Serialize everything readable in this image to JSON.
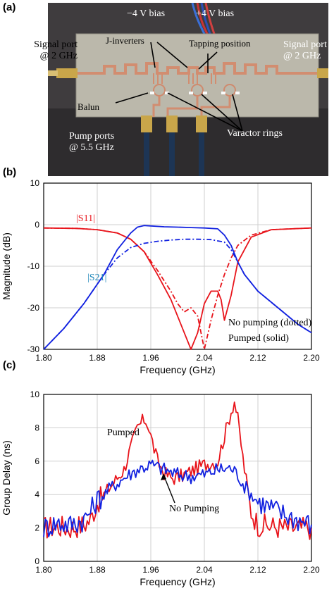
{
  "panels": {
    "a": "(a)",
    "b": "(b)",
    "c": "(c)"
  },
  "photo": {
    "bias_neg": "−4 V bias",
    "bias_pos": "+4 V bias",
    "signal_port_left": [
      "Signal port",
      "@ 2 GHz"
    ],
    "signal_port_right": [
      "Signal port",
      "@ 2 GHz"
    ],
    "j_inverters": "J-inverters",
    "tapping_position": "Tapping position",
    "balun": "Balun",
    "pump_ports": [
      "Pump ports",
      "@ 5.5 GHz"
    ],
    "varactor_rings": "Varactor rings"
  },
  "colors": {
    "red": "#e8141b",
    "blue": "#1222e0",
    "board": "#b9b6a9",
    "copper": "#d49073"
  },
  "chart_data": [
    {
      "type": "line",
      "panel": "(b)",
      "xlabel": "Frequency (GHz)",
      "ylabel": "Magnitude (dB)",
      "xlim": [
        1.8,
        2.2
      ],
      "ylim": [
        -30,
        10
      ],
      "xticks": [
        "1.80",
        "1.88",
        "1.96",
        "2.04",
        "2.12",
        "2.20"
      ],
      "yticks": [
        "10",
        "0",
        "-10",
        "-20",
        "-30"
      ],
      "grid": true,
      "curve_labels": {
        "s11": "|S11|",
        "s21": "|S21|"
      },
      "legend_text": [
        "No pumping (dotted)",
        "Pumped (solid)"
      ],
      "series": [
        {
          "name": "|S11|",
          "color": "#e8141b",
          "dash": "solid",
          "x": [
            1.8,
            1.85,
            1.88,
            1.91,
            1.93,
            1.95,
            1.97,
            1.99,
            2.0,
            2.01,
            2.02,
            2.03,
            2.04,
            2.05,
            2.06,
            2.065,
            2.07,
            2.08,
            2.09,
            2.11,
            2.14,
            2.2
          ],
          "y": [
            -0.8,
            -0.9,
            -1.2,
            -2.0,
            -3.5,
            -6.5,
            -12,
            -18,
            -22,
            -26,
            -30,
            -26,
            -19,
            -16,
            -16,
            -18,
            -23,
            -17,
            -9,
            -3,
            -1.2,
            -0.8
          ]
        },
        {
          "name": "|S11|",
          "color": "#e8141b",
          "dash": "dashed",
          "x": [
            1.8,
            1.85,
            1.88,
            1.91,
            1.93,
            1.95,
            1.97,
            1.99,
            2.0,
            2.01,
            2.02,
            2.03,
            2.04,
            2.05,
            2.06,
            2.07,
            2.08,
            2.09,
            2.11,
            2.14,
            2.2
          ],
          "y": [
            -0.8,
            -0.9,
            -1.2,
            -2.0,
            -3.5,
            -6.5,
            -11,
            -16,
            -19,
            -21,
            -20,
            -22,
            -30,
            -23,
            -17,
            -12,
            -8,
            -5,
            -2.5,
            -1.2,
            -0.8
          ]
        },
        {
          "name": "|S21|",
          "color": "#1222e0",
          "dash": "solid",
          "x": [
            1.8,
            1.83,
            1.86,
            1.89,
            1.91,
            1.93,
            1.94,
            1.95,
            1.96,
            1.98,
            2.0,
            2.02,
            2.04,
            2.06,
            2.07,
            2.08,
            2.09,
            2.1,
            2.12,
            2.15,
            2.18,
            2.2
          ],
          "y": [
            -30,
            -25,
            -19,
            -12,
            -6,
            -2,
            -0.6,
            -0.2,
            -0.3,
            -0.5,
            -0.6,
            -0.7,
            -0.8,
            -1.0,
            -2.5,
            -5,
            -9,
            -12,
            -16,
            -20,
            -24,
            -26
          ]
        },
        {
          "name": "|S21|",
          "color": "#1222e0",
          "dash": "dashed",
          "x": [
            1.8,
            1.83,
            1.86,
            1.89,
            1.91,
            1.93,
            1.95,
            1.97,
            1.99,
            2.01,
            2.03,
            2.05,
            2.07,
            2.08,
            2.09,
            2.1,
            2.12,
            2.15,
            2.18,
            2.2
          ],
          "y": [
            -30,
            -25,
            -19,
            -12,
            -8,
            -5.5,
            -4.5,
            -4.0,
            -3.7,
            -3.5,
            -3.5,
            -3.6,
            -4.2,
            -6,
            -9,
            -12,
            -16,
            -20,
            -24,
            -26
          ]
        }
      ]
    },
    {
      "type": "line",
      "panel": "(c)",
      "xlabel": "Frequency (GHz)",
      "ylabel": "Group Delay (ns)",
      "xlim": [
        1.8,
        2.2
      ],
      "ylim": [
        0,
        10
      ],
      "xticks": [
        "1.80",
        "1.88",
        "1.96",
        "2.04",
        "2.12",
        "2.20"
      ],
      "yticks": [
        "10",
        "8",
        "6",
        "4",
        "2",
        "0"
      ],
      "grid": true,
      "annotations": [
        "Pumped",
        "No Pumping"
      ],
      "series": [
        {
          "name": "Pumped",
          "color": "#e8141b",
          "x": [
            1.8,
            1.82,
            1.84,
            1.86,
            1.87,
            1.88,
            1.89,
            1.9,
            1.92,
            1.93,
            1.94,
            1.95,
            1.955,
            1.96,
            1.97,
            1.98,
            1.99,
            2.0,
            2.02,
            2.04,
            2.06,
            2.07,
            2.08,
            2.085,
            2.09,
            2.1,
            2.11,
            2.12,
            2.14,
            2.16,
            2.18,
            2.2
          ],
          "y": [
            2.0,
            2.1,
            2.0,
            2.2,
            2.5,
            3.5,
            4.0,
            4.5,
            5.5,
            6.8,
            8.0,
            8.5,
            8.3,
            7.5,
            6.0,
            5.3,
            5.0,
            5.0,
            5.4,
            5.8,
            6.0,
            7.5,
            9.0,
            9.6,
            8.5,
            5.5,
            3.0,
            2.2,
            2.1,
            2.0,
            2.0,
            2.0
          ]
        },
        {
          "name": "No Pumping",
          "color": "#1222e0",
          "x": [
            1.8,
            1.82,
            1.84,
            1.86,
            1.87,
            1.88,
            1.89,
            1.9,
            1.92,
            1.94,
            1.96,
            1.98,
            2.0,
            2.02,
            2.04,
            2.06,
            2.08,
            2.09,
            2.1,
            2.11,
            2.12,
            2.14,
            2.16,
            2.18,
            2.2
          ],
          "y": [
            2.0,
            2.3,
            2.2,
            2.5,
            3.0,
            3.7,
            4.0,
            4.4,
            5.0,
            5.5,
            5.8,
            5.5,
            5.2,
            5.1,
            5.2,
            5.5,
            5.6,
            5.2,
            4.5,
            4.0,
            3.6,
            3.2,
            2.8,
            2.5,
            2.2
          ]
        }
      ]
    }
  ]
}
